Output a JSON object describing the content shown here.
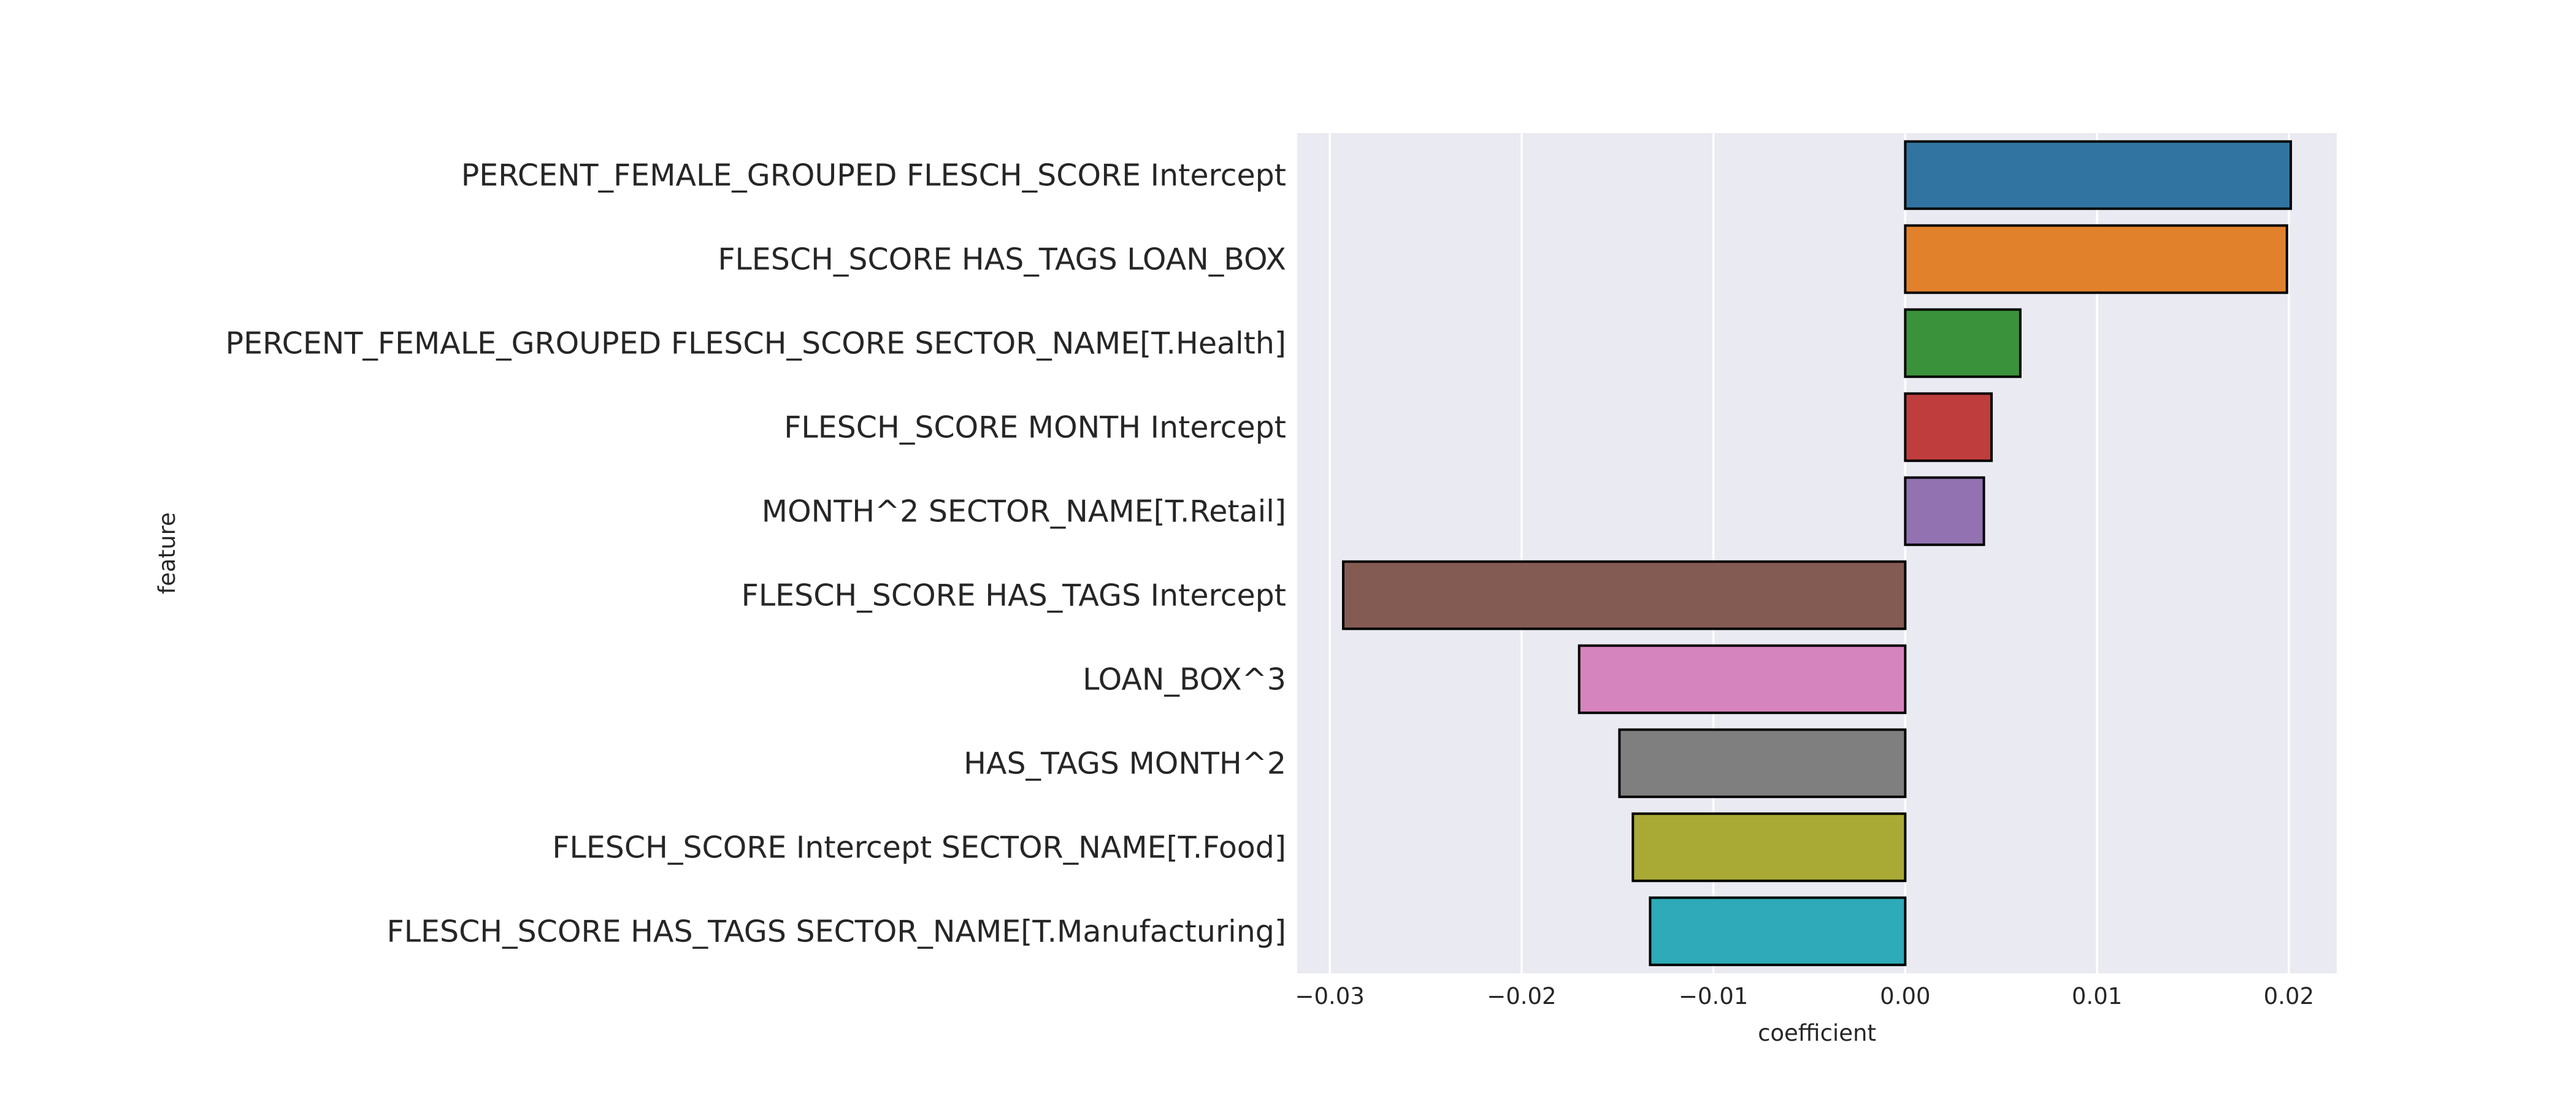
{
  "chart_data": {
    "type": "bar",
    "orientation": "horizontal",
    "title": "",
    "xlabel": "coefficient",
    "ylabel": "feature",
    "xlim": [
      -0.0317,
      0.0225
    ],
    "xticks": [
      -0.03,
      -0.02,
      -0.01,
      0.0,
      0.01,
      0.02
    ],
    "xtick_labels": [
      "−0.03",
      "−0.02",
      "−0.01",
      "0.00",
      "0.01",
      "0.02"
    ],
    "grid": true,
    "background": "#eaeaf2",
    "categories": [
      "PERCENT_FEMALE_GROUPED FLESCH_SCORE Intercept",
      "FLESCH_SCORE HAS_TAGS LOAN_BOX",
      "PERCENT_FEMALE_GROUPED FLESCH_SCORE SECTOR_NAME[T.Health]",
      "FLESCH_SCORE MONTH Intercept",
      "MONTH^2 SECTOR_NAME[T.Retail]",
      "FLESCH_SCORE HAS_TAGS Intercept",
      "LOAN_BOX^3",
      "HAS_TAGS MONTH^2",
      "FLESCH_SCORE Intercept SECTOR_NAME[T.Food]",
      "FLESCH_SCORE HAS_TAGS SECTOR_NAME[T.Manufacturing]"
    ],
    "values": [
      0.0201,
      0.0199,
      0.006,
      0.0045,
      0.0041,
      -0.0293,
      -0.017,
      -0.0149,
      -0.0142,
      -0.0133
    ],
    "colors": [
      "#3274a1",
      "#e1812c",
      "#3a923a",
      "#c03d3e",
      "#9372b2",
      "#845b53",
      "#d684bd",
      "#7f7f7f",
      "#a9aa35",
      "#2eaab8"
    ]
  }
}
